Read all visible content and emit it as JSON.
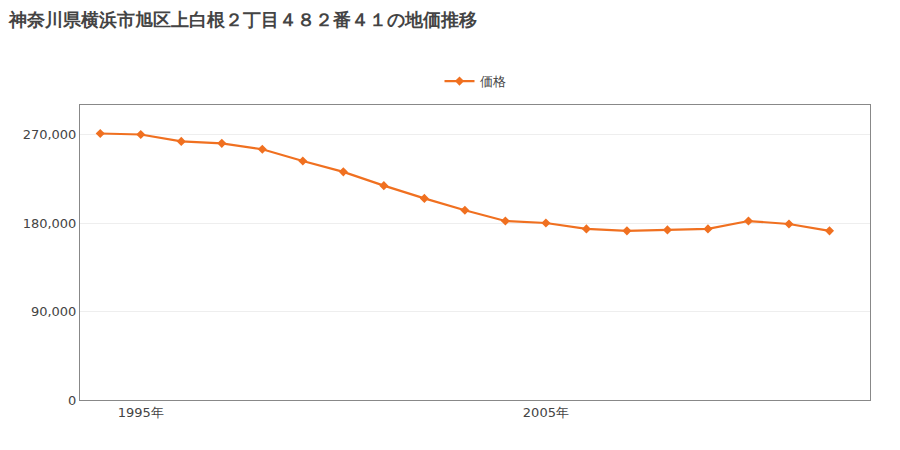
{
  "chart_data": {
    "type": "line",
    "title": "神奈川県横浜市旭区上白根２丁目４８２番４１の地価推移",
    "x": [
      1994,
      1995,
      1996,
      1997,
      1998,
      1999,
      2000,
      2001,
      2002,
      2003,
      2004,
      2005,
      2006,
      2007,
      2008,
      2009,
      2010,
      2011,
      2012
    ],
    "series": [
      {
        "name": "価格",
        "color": "#f07020",
        "values": [
          271000,
          270000,
          263000,
          261000,
          255000,
          243000,
          232000,
          218000,
          205000,
          193000,
          182000,
          180000,
          174000,
          172000,
          173000,
          174000,
          182000,
          179000,
          172000
        ]
      }
    ],
    "xlim": [
      1993.5,
      2013.0
    ],
    "xticks": [
      {
        "value": 1995,
        "label": "1995年"
      },
      {
        "value": 2005,
        "label": "2005年"
      }
    ],
    "ylim": [
      0,
      300000
    ],
    "yticks": [
      0,
      {
        "value": 90000,
        "label": "90,000"
      },
      {
        "value": 180000,
        "label": "180,000"
      },
      {
        "value": 270000,
        "label": "270,000"
      }
    ],
    "grid": "y",
    "legend": "top",
    "marker": "diamond"
  }
}
